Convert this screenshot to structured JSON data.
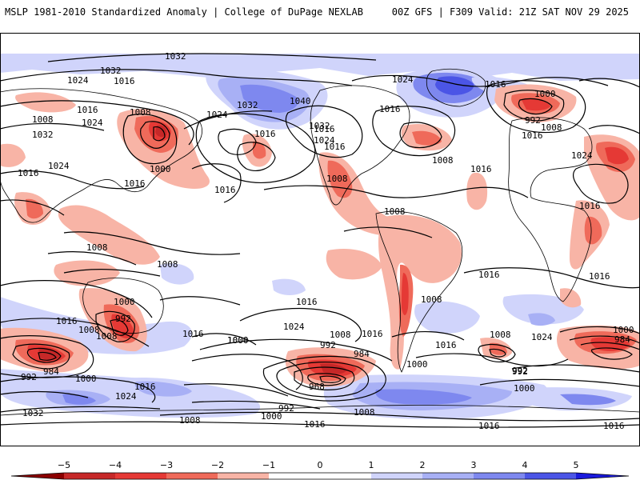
{
  "header": {
    "left": "MSLP 1981-2010 Standardized Anomaly | College of DuPage NEXLAB",
    "right": "00Z GFS | F309 Valid: 21Z SAT NOV 29 2025"
  },
  "colors": {
    "neg5": "#8b0000",
    "neg4": "#c62828",
    "neg3": "#e53935",
    "neg2": "#ef6a5a",
    "neg1": "#f8b4a6",
    "zero": "#ffffff",
    "pos1": "#d0d4fb",
    "pos2": "#a8b0f5",
    "pos3": "#7e88ef",
    "pos4": "#4b55e6",
    "pos5": "#1a1adc",
    "land": "#ffffff",
    "border": "#000000"
  },
  "colorbar": {
    "ticks": [
      "−5",
      "−4",
      "−3",
      "−2",
      "−1",
      "0",
      "1",
      "2",
      "3",
      "4",
      "5"
    ]
  },
  "isobars": {
    "labels": [
      "1032",
      "1032",
      "1024",
      "1016",
      "1008",
      "1024",
      "1016",
      "1032",
      "1024",
      "1040",
      "1032",
      "1024",
      "1016",
      "1016",
      "1016",
      "1000",
      "1016",
      "1008",
      "1016",
      "1024",
      "1016",
      "1032",
      "1016",
      "1024",
      "1000",
      "992",
      "1008",
      "1016",
      "1008",
      "1016",
      "1024",
      "1016",
      "1008",
      "1008",
      "1008",
      "1000",
      "992",
      "1016",
      "1008",
      "1016",
      "1016",
      "1024",
      "1016",
      "1000",
      "1016",
      "1008",
      "992",
      "1008",
      "1024",
      "1000",
      "984",
      "992",
      "984",
      "1008",
      "1000",
      "992",
      "1000",
      "984",
      "968",
      "992",
      "1000",
      "1008",
      "1016",
      "1008",
      "1024",
      "1016",
      "992",
      "1000",
      "1008",
      "1016",
      "1000",
      "1032",
      "1016",
      "1016",
      "1008",
      "1016",
      "1016"
    ]
  }
}
